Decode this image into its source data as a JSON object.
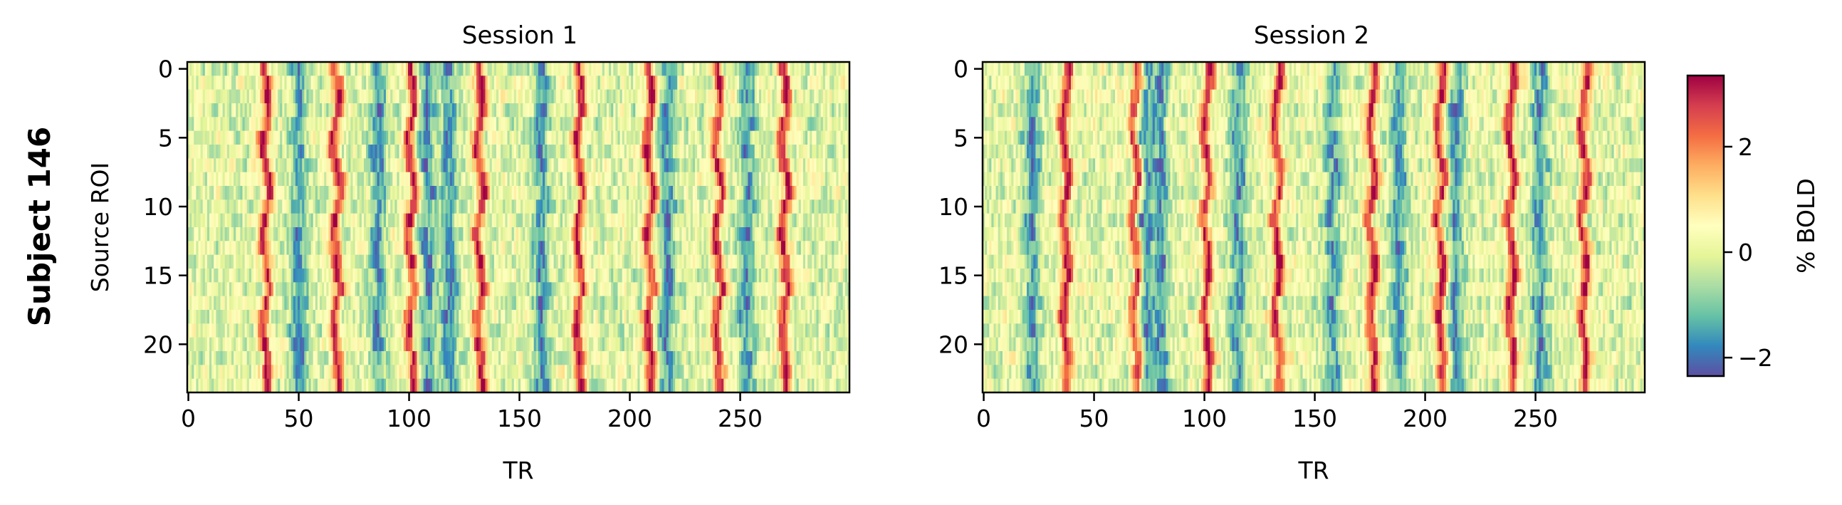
{
  "figure": {
    "row_title": "Subject 146"
  },
  "chart_data": [
    {
      "type": "heatmap",
      "title": "Session 1",
      "xlabel": "TR",
      "ylabel": "Source ROI",
      "x_range": [
        0,
        299
      ],
      "y_range": [
        0,
        23
      ],
      "x_ticks": [
        "0",
        "50",
        "100",
        "150",
        "200",
        "250"
      ],
      "y_ticks": [
        "0",
        "5",
        "10",
        "15",
        "20"
      ],
      "rows": 24,
      "columns": 300,
      "peak_tr": [
        35,
        67,
        101,
        132,
        177,
        209,
        240,
        270
      ],
      "trough_tr": [
        50,
        86,
        108,
        118,
        160,
        217,
        253
      ]
    },
    {
      "type": "heatmap",
      "title": "Session 2",
      "xlabel": "TR",
      "ylabel": "",
      "x_range": [
        0,
        299
      ],
      "y_range": [
        0,
        23
      ],
      "x_ticks": [
        "0",
        "50",
        "100",
        "150",
        "200",
        "250"
      ],
      "y_ticks": [
        "0",
        "5",
        "10",
        "15",
        "20"
      ],
      "rows": 24,
      "columns": 300,
      "peak_tr": [
        37,
        69,
        101,
        133,
        176,
        207,
        239,
        272
      ],
      "trough_tr": [
        22,
        73,
        80,
        115,
        158,
        188,
        214,
        252
      ]
    }
  ],
  "colorbar": {
    "label": "% BOLD",
    "colormap": "Spectral_r",
    "range": [
      -2.35,
      3.35
    ],
    "ticks": [
      "−2",
      "0",
      "2"
    ],
    "tick_values": [
      -2,
      0,
      2
    ]
  }
}
